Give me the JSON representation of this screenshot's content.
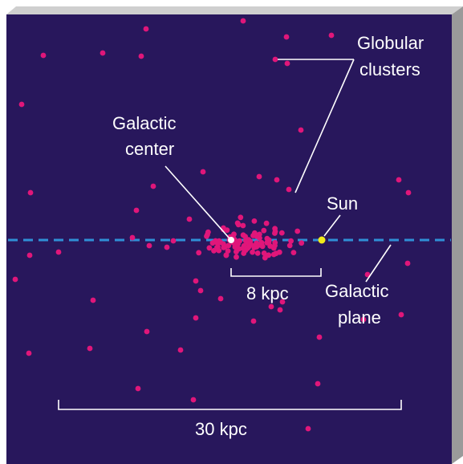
{
  "labels": {
    "globular_1": "Globular",
    "globular_2": "clusters",
    "center_1": "Galactic",
    "center_2": "center",
    "sun": "Sun",
    "plane_1": "Galactic",
    "plane_2": "plane",
    "scale_small": "8 kpc",
    "scale_large": "30 kpc"
  },
  "colors": {
    "background": "#28175c",
    "cluster": "#e0167a",
    "sun": "#f1ea1a",
    "center_marker": "#ffffff",
    "plane_line": "#2f8fd6",
    "text_and_leaders": "#ffffff",
    "box_side": "#9a9a9a",
    "box_top": "#cfcfcf"
  },
  "markers": {
    "cluster_count": 150,
    "center_marker": "white-dot",
    "sun_marker": "yellow-dot"
  }
}
